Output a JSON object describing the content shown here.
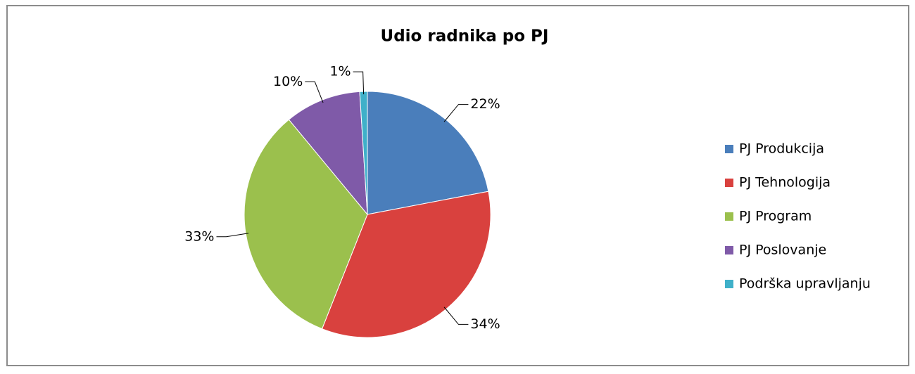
{
  "chart_data": {
    "type": "pie",
    "title": "Udio radnika po PJ",
    "categories": [
      "PJ Produkcija",
      "PJ Tehnologija",
      "PJ Program",
      "PJ Poslovanje",
      "Podrška upravljanju"
    ],
    "values": [
      22,
      34,
      33,
      10,
      1
    ],
    "value_labels": [
      "22%",
      "34%",
      "33%",
      "10%",
      "1%"
    ],
    "colors": [
      "#4a7ebb",
      "#d9413e",
      "#9bc04d",
      "#7f5aa8",
      "#3fb0c9"
    ],
    "legend": "right"
  }
}
